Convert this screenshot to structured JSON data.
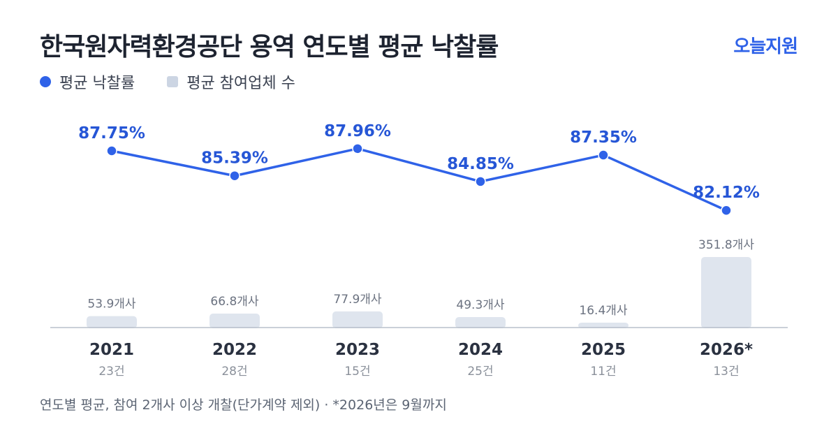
{
  "header": {
    "title": "한국원자력환경공단 용역 연도별 평균 낙찰률",
    "brand": "오늘지원"
  },
  "legend": {
    "rate_label": "평균 낙찰률",
    "bidders_label": "평균 참여업체 수"
  },
  "colors": {
    "line": "#2f62e8",
    "rate_label": "#2656d6",
    "bar": "#dfe5ee",
    "axis": "#b9c0cb",
    "year": "#2a3140",
    "count": "#8a909a",
    "bar_label": "#6b7280"
  },
  "chart_data": {
    "type": "bar+line",
    "categories": [
      "2021",
      "2022",
      "2023",
      "2024",
      "2025",
      "2026*"
    ],
    "series": [
      {
        "name": "평균 낙찰률",
        "type": "line",
        "values": [
          87.75,
          85.39,
          87.96,
          84.85,
          87.35,
          82.12
        ],
        "labels": [
          "87.75%",
          "85.39%",
          "87.96%",
          "84.85%",
          "87.35%",
          "82.12%"
        ]
      },
      {
        "name": "평균 참여업체 수",
        "type": "bar",
        "values": [
          53.9,
          66.8,
          77.9,
          49.3,
          16.4,
          351.8
        ],
        "labels": [
          "53.9개사",
          "66.8개사",
          "77.9개사",
          "49.3개사",
          "16.4개사",
          "351.8개사"
        ]
      }
    ],
    "counts": [
      "23건",
      "28건",
      "15건",
      "25건",
      "11건",
      "13건"
    ],
    "legend_position": "top-left",
    "grid": false
  },
  "footnote": "연도별 평균, 참여 2개사 이상 개찰(단가계약 제외) · *2026년은 9월까지"
}
